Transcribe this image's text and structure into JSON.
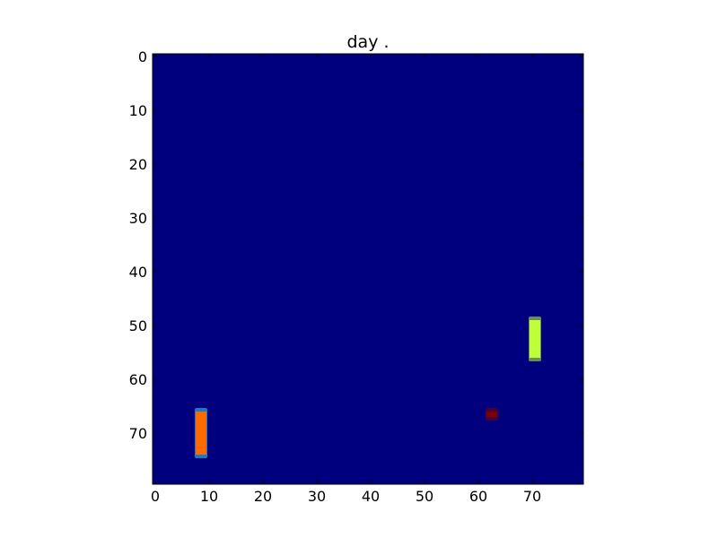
{
  "chart_data": {
    "type": "heatmap",
    "title": "day .",
    "xlabel": "",
    "ylabel": "",
    "grid": 80,
    "xlim": [
      0,
      80
    ],
    "ylim": [
      80,
      0
    ],
    "x_ticks": [
      "0",
      "10",
      "20",
      "30",
      "40",
      "50",
      "60",
      "70"
    ],
    "y_ticks": [
      "0",
      "10",
      "20",
      "30",
      "40",
      "50",
      "60",
      "70"
    ],
    "background_value": 0,
    "background_color": "#00007f",
    "colormap": "jet",
    "blobs": [
      {
        "name": "paddle-left",
        "x": [
          8,
          9
        ],
        "y": [
          66,
          74
        ],
        "core_color": "#ff6a00",
        "edge_color": "#23e6ff"
      },
      {
        "name": "paddle-right",
        "x": [
          70,
          71
        ],
        "y": [
          49,
          56
        ],
        "core_color": "#bfff3a",
        "edge_color": "#bfff3a"
      },
      {
        "name": "ball",
        "x": [
          62,
          63
        ],
        "y": [
          66,
          67
        ],
        "core_color": "#7f0000",
        "edge_color": "#7f0000"
      }
    ]
  }
}
